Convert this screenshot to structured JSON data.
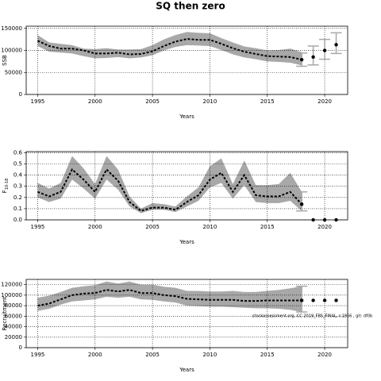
{
  "chart_data": [
    {
      "type": "line",
      "title": "SQ then zero",
      "ylabel": "SSB",
      "xlabel": "Years",
      "xlim": [
        1994,
        2022
      ],
      "xticks": [
        1995,
        2000,
        2005,
        2010,
        2015,
        2020
      ],
      "ylim": [
        0,
        155000
      ],
      "yticks": [
        0,
        50000,
        100000,
        150000
      ],
      "grid": true,
      "line_color": "#000000",
      "band_color": "#a8a8a8",
      "x": [
        1995,
        1996,
        1997,
        1998,
        1999,
        2000,
        2001,
        2002,
        2003,
        2004,
        2005,
        2006,
        2007,
        2008,
        2009,
        2010,
        2011,
        2012,
        2013,
        2014,
        2015,
        2016,
        2017,
        2018
      ],
      "values": [
        122000,
        110000,
        104000,
        104000,
        100000,
        93000,
        93000,
        95000,
        91000,
        92000,
        98000,
        110000,
        120000,
        126000,
        124000,
        124000,
        115000,
        105000,
        97000,
        92000,
        87000,
        86000,
        85000,
        79000
      ],
      "lower": [
        110000,
        97000,
        95000,
        93000,
        87000,
        82000,
        83000,
        85000,
        82000,
        84000,
        89000,
        100000,
        108000,
        112000,
        111000,
        110000,
        101000,
        91000,
        84000,
        80000,
        75000,
        74000,
        72000,
        66000
      ],
      "upper": [
        135000,
        118000,
        115000,
        112000,
        104000,
        103000,
        105000,
        102000,
        102000,
        103000,
        112000,
        125000,
        135000,
        142000,
        140000,
        139000,
        128000,
        118000,
        109000,
        105000,
        100000,
        101000,
        104000,
        96000
      ],
      "points": {
        "x": [
          2018,
          2019,
          2020,
          2021
        ],
        "values": [
          79000,
          85000,
          100000,
          113000
        ],
        "lower": [
          64000,
          67000,
          80000,
          93000
        ],
        "upper": [
          94000,
          110000,
          125000,
          140000
        ]
      }
    },
    {
      "type": "line",
      "ylabel": "F",
      "ylabel_subscript": "10-18",
      "xlabel": "Years",
      "xlim": [
        1994,
        2022
      ],
      "xticks": [
        1995,
        2000,
        2005,
        2010,
        2015,
        2020
      ],
      "ylim": [
        0,
        0.61
      ],
      "yticks": [
        {
          "value": 0,
          "label": "0.0"
        },
        0.1,
        0.2,
        0.3,
        0.4,
        0.5,
        0.6
      ],
      "grid": true,
      "line_color": "#000000",
      "band_color": "#a8a8a8",
      "x": [
        1995,
        1996,
        1997,
        1998,
        1999,
        2000,
        2001,
        2002,
        2003,
        2004,
        2005,
        2006,
        2007,
        2008,
        2009,
        2010,
        2011,
        2012,
        2013,
        2014,
        2015,
        2016,
        2017,
        2018
      ],
      "values": [
        0.25,
        0.21,
        0.25,
        0.45,
        0.36,
        0.25,
        0.45,
        0.35,
        0.16,
        0.08,
        0.11,
        0.11,
        0.09,
        0.16,
        0.22,
        0.36,
        0.42,
        0.25,
        0.4,
        0.22,
        0.21,
        0.21,
        0.25,
        0.14
      ],
      "lower": [
        0.2,
        0.16,
        0.19,
        0.36,
        0.28,
        0.19,
        0.36,
        0.27,
        0.12,
        0.06,
        0.09,
        0.09,
        0.07,
        0.12,
        0.17,
        0.29,
        0.33,
        0.19,
        0.31,
        0.16,
        0.15,
        0.15,
        0.17,
        0.08
      ],
      "upper": [
        0.33,
        0.28,
        0.33,
        0.57,
        0.46,
        0.32,
        0.57,
        0.45,
        0.21,
        0.1,
        0.15,
        0.14,
        0.12,
        0.21,
        0.29,
        0.48,
        0.55,
        0.32,
        0.53,
        0.31,
        0.31,
        0.32,
        0.42,
        0.25
      ],
      "points": {
        "x": [
          2018,
          2019,
          2020,
          2021
        ],
        "values": [
          0.14,
          0,
          0,
          0
        ],
        "lower": [
          0.08,
          null,
          null,
          null
        ],
        "upper": [
          0.25,
          null,
          null,
          null
        ]
      }
    },
    {
      "type": "line",
      "ylabel": "Recruitment",
      "xlabel": "Years",
      "xlim": [
        1994,
        2022
      ],
      "xticks": [
        1995,
        2000,
        2005,
        2010,
        2015,
        2020
      ],
      "ylim": [
        0,
        130000
      ],
      "yticks": [
        0,
        20000,
        40000,
        60000,
        80000,
        100000,
        120000
      ],
      "grid": true,
      "line_color": "#000000",
      "band_color": "#a8a8a8",
      "annotation": "stockassessment.org, CC 2019_FBS_FINAL, r:1956 , git: df0b",
      "x": [
        1995,
        1996,
        1997,
        1998,
        1999,
        2000,
        2001,
        2002,
        2003,
        2004,
        2005,
        2006,
        2007,
        2008,
        2009,
        2010,
        2011,
        2012,
        2013,
        2014,
        2015,
        2016,
        2017,
        2018
      ],
      "values": [
        80000,
        84000,
        92000,
        100000,
        103000,
        104000,
        110000,
        107000,
        110000,
        104000,
        104000,
        100000,
        98000,
        93000,
        92000,
        91000,
        91000,
        91000,
        89000,
        89000,
        90000,
        90000,
        90000,
        90000
      ],
      "lower": [
        70000,
        74000,
        82000,
        88000,
        90000,
        92000,
        97000,
        95000,
        97000,
        92000,
        91000,
        88000,
        86000,
        80000,
        79000,
        78000,
        78000,
        77000,
        76000,
        75000,
        75000,
        74000,
        72000,
        68000
      ],
      "upper": [
        95000,
        99000,
        106000,
        114000,
        117000,
        119000,
        126000,
        122000,
        126000,
        120000,
        120000,
        116000,
        114000,
        108000,
        108000,
        107000,
        107000,
        108000,
        106000,
        106000,
        108000,
        110000,
        113000,
        117000
      ],
      "points": {
        "x": [
          2018,
          2019,
          2020,
          2021
        ],
        "values": [
          90000,
          90000,
          90000,
          90000
        ],
        "lower": [
          68000,
          null,
          null,
          null
        ],
        "upper": [
          117000,
          null,
          null,
          null
        ]
      }
    }
  ]
}
